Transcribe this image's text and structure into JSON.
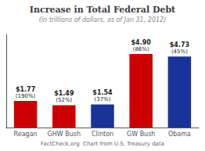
{
  "chart_data": {
    "type": "bar",
    "title": "Increase in Total Federal Debt",
    "subtitle": "(in trillions of dollars, as of Jan 31, 2012)",
    "footer": "FactCheck.org  Chart from U.S. Treasury data",
    "categories": [
      "Reagan",
      "GHW Bush",
      "Clinton",
      "GW Bush",
      "Obama"
    ],
    "values": [
      1.77,
      1.49,
      1.54,
      4.9,
      4.73
    ],
    "value_labels": [
      "$1.77",
      "$1.49",
      "$1.54",
      "$4.90",
      "$4.73"
    ],
    "annotations": [
      "(190%)",
      "(52%)",
      "(37%)",
      "(86%)",
      "(45%)"
    ],
    "colors": [
      "#cc0000",
      "#cc0000",
      "#1a3399",
      "#cc0000",
      "#1a3399"
    ],
    "ylim": [
      0,
      6.2
    ],
    "yticks": [],
    "grid": false,
    "data_labels": true,
    "tick_labels": "x"
  }
}
